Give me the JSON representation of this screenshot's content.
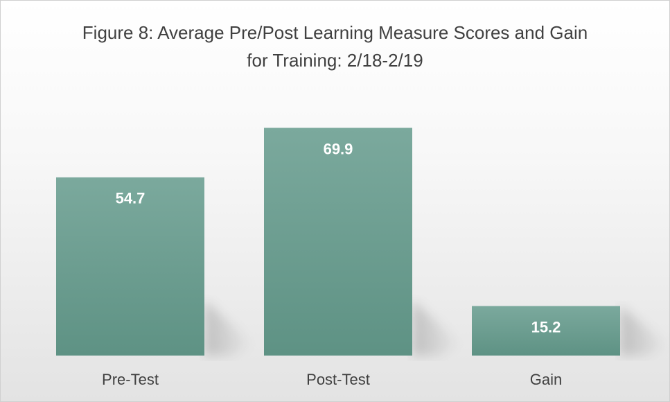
{
  "chart_data": {
    "type": "bar",
    "title": "Figure 8: Average Pre/Post Learning Measure Scores and Gain for Training: 2/18-2/19",
    "categories": [
      "Pre-Test",
      "Post-Test",
      "Gain"
    ],
    "values": [
      54.7,
      69.9,
      15.2
    ],
    "color": "#6c9d90"
  }
}
